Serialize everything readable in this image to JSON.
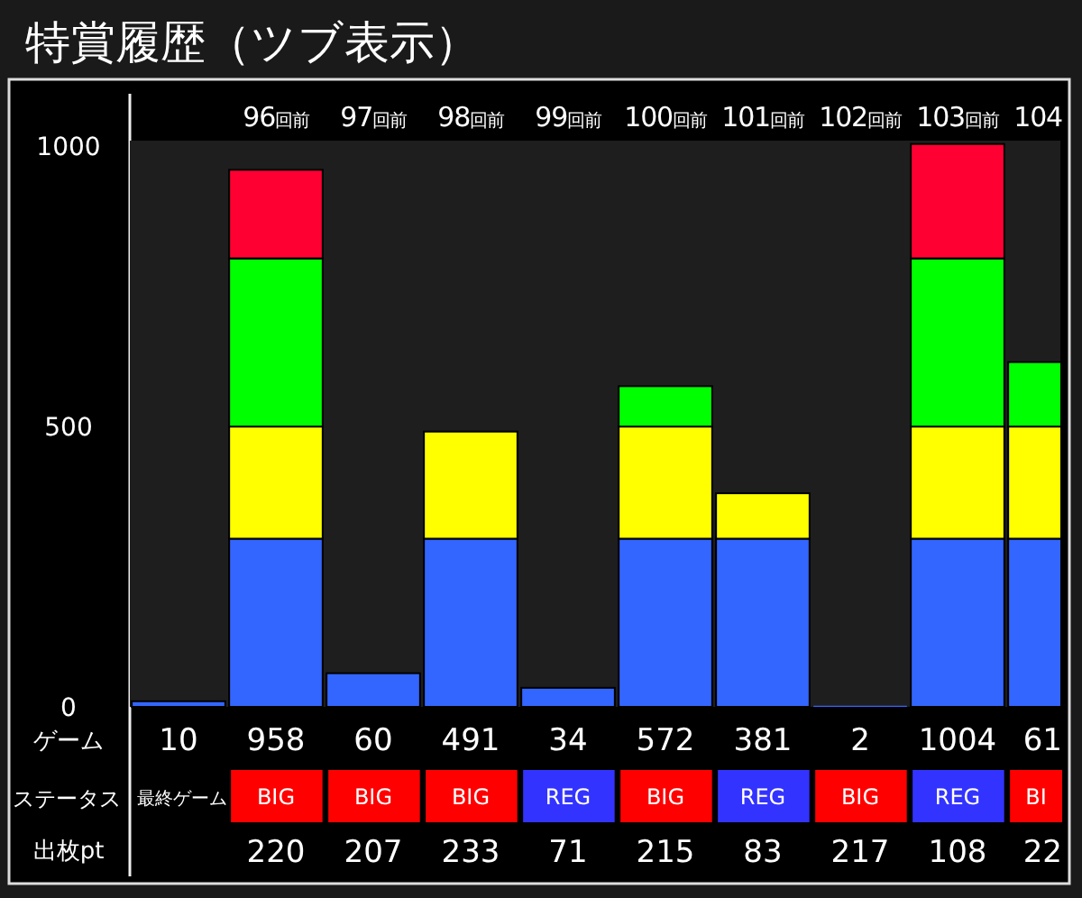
{
  "chart_data": [
    {
      "type": "bar",
      "title": "特賞履歴（ツブ表示）",
      "stacked": true,
      "categories": [
        null,
        "96回前",
        "97回前",
        "98回前",
        "99回前",
        "100回前",
        "101回前",
        "102回前",
        "103回前",
        "104"
      ],
      "series": [
        {
          "color": "#3366ff",
          "values": [
            10,
            300,
            60,
            300,
            34,
            300,
            300,
            2,
            300,
            300
          ]
        },
        {
          "color": "#ffff00",
          "values": [
            0,
            200,
            0,
            191,
            0,
            200,
            81,
            0,
            200,
            200
          ]
        },
        {
          "color": "#00ff00",
          "values": [
            0,
            300,
            0,
            0,
            0,
            72,
            0,
            0,
            300,
            115
          ]
        },
        {
          "color": "#ff0033",
          "values": [
            0,
            158,
            0,
            0,
            0,
            0,
            0,
            0,
            204,
            0
          ]
        }
      ],
      "ylim": [
        0,
        1010
      ],
      "yticks": [
        0,
        500,
        1000
      ]
    },
    {
      "type": "other",
      "annotations": [
        "ゲーム",
        "10",
        "958",
        "60",
        "491",
        "34",
        "572",
        "381",
        "2",
        "1004",
        "61",
        "ステータス",
        "最終ゲーム",
        "BIG",
        "BIG",
        "BIG",
        "REG",
        "BIG",
        "REG",
        "BIG",
        "REG",
        "BI",
        "出枚pt",
        "220",
        "207",
        "233",
        "71",
        "215",
        "83",
        "217",
        "108",
        "22"
      ],
      "colors": [
        "#ff0000",
        "#ff0000",
        "#ff0000",
        "#3333ff",
        "#ff0000",
        "#3333ff",
        "#ff0000",
        "#3333ff",
        "#ff0000"
      ]
    }
  ]
}
